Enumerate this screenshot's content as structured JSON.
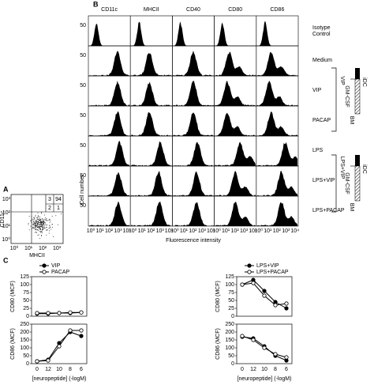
{
  "panel_a": {
    "label": "A",
    "x_label": "MHCII",
    "y_label": "CD11c",
    "quadrant_labels": [
      "3",
      "94",
      "2",
      "1"
    ],
    "x_ticks": [
      "10⁰",
      "10¹",
      "10²",
      "10³"
    ],
    "y_ticks": [
      "10⁰",
      "10¹",
      "10²",
      "10³"
    ]
  },
  "panel_b": {
    "label": "B",
    "columns": [
      "CD11c",
      "MHCII",
      "CD40",
      "CD80",
      "CD86"
    ],
    "rows": [
      "Isotype Control",
      "Medium",
      "VIP",
      "PACAP",
      "LPS",
      "LPS+VIP",
      "LPS+PACAP"
    ],
    "y_tick": "50",
    "x_ticks": [
      "10⁰",
      "10¹",
      "10²",
      "10³",
      "10⁴"
    ],
    "x_label": "Fluorescence intensity",
    "y_label": "Cell number",
    "diagrams": [
      {
        "treatment": "VIP",
        "factor": "GM-CSF",
        "source": "BM",
        "result": "iDC"
      },
      {
        "treatment": "LPS+VIP",
        "factor": "GM-CSF",
        "source": "BM",
        "result": "iDC"
      }
    ]
  },
  "panel_c": {
    "label": "C",
    "charts": [
      {
        "type": "line",
        "y_label": "CD80 (MCF)",
        "ylim": [
          0,
          125
        ],
        "yticks": [
          0,
          25,
          50,
          75,
          100,
          125
        ],
        "series": [
          {
            "name": "VIP",
            "color": "#000000",
            "marker": "filled",
            "values": [
              8,
              8,
              10,
              10,
              12
            ]
          },
          {
            "name": "PACAP",
            "color": "#000000",
            "marker": "open",
            "values": [
              10,
              10,
              10,
              12,
              12
            ]
          }
        ]
      },
      {
        "type": "line",
        "y_label": "CD86 (MCF)",
        "ylim": [
          0,
          250
        ],
        "yticks": [
          0,
          50,
          100,
          150,
          200,
          250
        ],
        "categories": [
          "0",
          "12",
          "10",
          "8",
          "6"
        ],
        "x_label": "[neuropeptide] (-logM)",
        "series": [
          {
            "color": "#000000",
            "marker": "filled",
            "values": [
              15,
              25,
              130,
              200,
              175
            ]
          },
          {
            "color": "#000000",
            "marker": "open",
            "values": [
              15,
              20,
              110,
              210,
              210
            ]
          }
        ]
      },
      {
        "type": "line",
        "y_label": "CD80 (MCF)",
        "ylim": [
          0,
          125
        ],
        "yticks": [
          0,
          25,
          50,
          75,
          100,
          125
        ],
        "series": [
          {
            "name": "LPS+VIP",
            "color": "#000000",
            "marker": "filled",
            "values": [
              100,
              115,
              80,
              45,
              25
            ]
          },
          {
            "name": "LPS+PACAP",
            "color": "#000000",
            "marker": "open",
            "values": [
              100,
              105,
              65,
              35,
              40
            ]
          }
        ]
      },
      {
        "type": "line",
        "y_label": "CD86 (MCF)",
        "ylim": [
          0,
          250
        ],
        "yticks": [
          0,
          50,
          100,
          150,
          200,
          250
        ],
        "categories": [
          "0",
          "12",
          "10",
          "8",
          "6"
        ],
        "x_label": "[neuropeptide] (-logM)",
        "series": [
          {
            "color": "#000000",
            "marker": "filled",
            "values": [
              170,
              160,
              110,
              50,
              20
            ]
          },
          {
            "color": "#000000",
            "marker": "open",
            "values": [
              175,
              150,
              100,
              60,
              40
            ]
          }
        ]
      }
    ]
  }
}
